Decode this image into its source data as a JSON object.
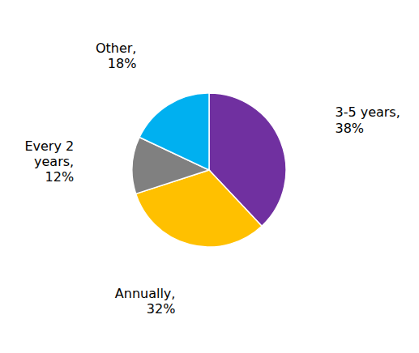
{
  "chart_data": {
    "type": "pie",
    "categories": [
      "3-5 years,\n38%",
      "Annually,\n32%",
      "Every 2\nyears,\n12%",
      "Other,\n18%"
    ],
    "values": [
      38,
      32,
      12,
      18
    ],
    "colors": [
      "#7030A0",
      "#FFC000",
      "#808080",
      "#00B0F0"
    ]
  }
}
